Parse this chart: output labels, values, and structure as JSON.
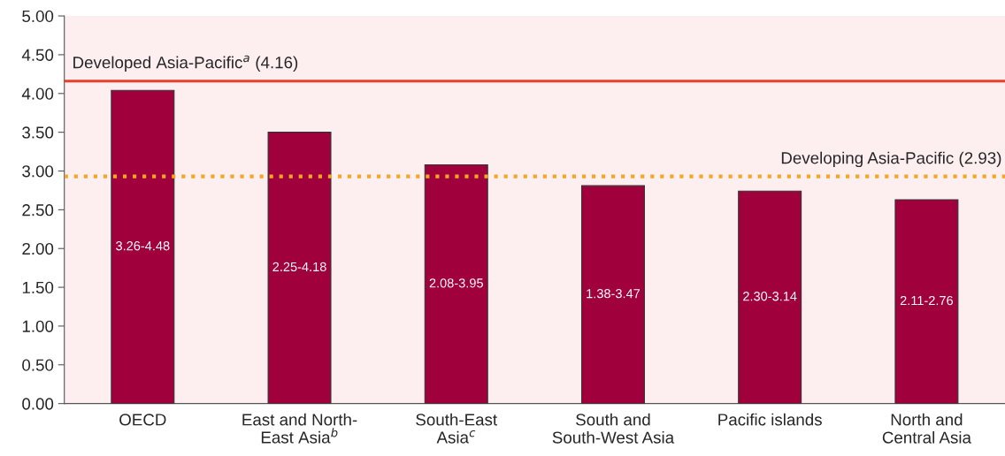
{
  "chart_data": {
    "type": "bar",
    "categories": [
      "OECD",
      "East and North-\nEast Asia$^{b}$",
      "South-East\nAsia$^{c}$",
      "South and\nSouth-West Asia",
      "Pacific islands",
      "North and\nCentral Asia"
    ],
    "values": [
      4.04,
      3.5,
      3.08,
      2.81,
      2.74,
      2.63
    ],
    "color": "#a0003c",
    "value_labels": [
      "3.26-4.48",
      "2.25-4.18",
      "2.08-3.95",
      "1.38-3.47",
      "2.30-3.14",
      "2.11-2.76"
    ],
    "ylim": [
      0,
      5
    ],
    "yticks": [
      {
        "value": 0,
        "label": "0.00"
      },
      {
        "value": 0.5,
        "label": "0.50"
      },
      {
        "value": 1,
        "label": "1.00"
      },
      {
        "value": 1.5,
        "label": "1.50"
      },
      {
        "value": 2,
        "label": "2.00"
      },
      {
        "value": 2.5,
        "label": "2.50"
      },
      {
        "value": 3,
        "label": "3.00"
      },
      {
        "value": 3.5,
        "label": "3.50"
      },
      {
        "value": 4,
        "label": "4.00"
      },
      {
        "value": 4.5,
        "label": "4.50"
      },
      {
        "value": 5,
        "label": "5.00"
      }
    ],
    "ref_lines": [
      {
        "axis": "y",
        "value": 4.16,
        "label": "Developed Asia-Pacific$^{a}$ (4.16)",
        "color": "#e8402a",
        "line_style": "solid"
      },
      {
        "axis": "y",
        "value": 2.93,
        "label": "Developing Asia-Pacific (2.93)",
        "color": "#f5a623",
        "line_style": "dotted"
      }
    ],
    "grid": false
  }
}
